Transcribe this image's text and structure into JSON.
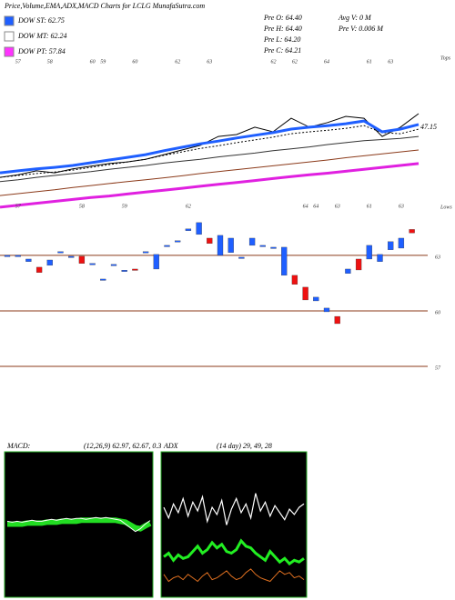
{
  "chart_data": [
    {
      "type": "line",
      "title": "Price,Volume,EMA,ADX,MACD Charts for LCLG MunafaSutra.com",
      "legend": [
        {
          "label": "DOW ST: 62.75",
          "color": "#1f5fff"
        },
        {
          "label": "DOW MT: 62.24",
          "color": "#ffffff"
        },
        {
          "label": "DOW PT: 57.84",
          "color": "#ff33ff"
        }
      ],
      "stats": [
        "Pre  O: 64.40",
        "Pre  H: 64.40",
        "Pre  L: 64.20",
        "Pre  C: 64.21"
      ],
      "volume_stats": [
        "Avg V: 0  M",
        "Pre  V: 0.006  M"
      ],
      "tops_label": "Tops",
      "lows_label": "Lows",
      "annotation": "47.15",
      "ylim": [
        30,
        70
      ],
      "series": [
        {
          "color": "#000000",
          "style": "thin",
          "values": [
            38.2,
            38.9,
            39.9,
            39.4,
            40.4,
            41.1,
            41.8,
            42.2,
            42.9,
            44.1,
            45.3,
            46.5,
            48.8,
            49.3,
            51.2,
            50.0,
            53.5,
            51.2,
            52.4,
            54.0,
            53.5,
            48.8,
            51.2,
            54.7
          ]
        },
        {
          "color": "#000000",
          "style": "dotted",
          "values": [
            38.2,
            38.7,
            39.2,
            39.6,
            40.1,
            40.8,
            41.5,
            42.2,
            42.9,
            43.9,
            44.8,
            45.7,
            46.4,
            47.2,
            47.9,
            48.6,
            49.5,
            50.0,
            50.4,
            50.9,
            51.6,
            49.8,
            49.5,
            50.7
          ]
        },
        {
          "color": "#1f5fff",
          "style": "thick",
          "values": [
            39.4,
            39.9,
            40.4,
            40.8,
            41.3,
            42.0,
            42.7,
            43.4,
            44.1,
            45.1,
            46.0,
            46.9,
            47.6,
            48.4,
            49.1,
            49.8,
            50.7,
            51.2,
            51.6,
            52.1,
            52.8,
            50.0,
            50.7,
            51.9
          ]
        },
        {
          "color": "#333333",
          "style": "thin",
          "values": [
            37.1,
            37.6,
            38.2,
            38.7,
            39.2,
            39.7,
            40.3,
            40.8,
            41.3,
            41.9,
            42.4,
            42.9,
            43.5,
            44.0,
            44.5,
            45.1,
            45.6,
            46.1,
            46.7,
            47.2,
            47.7,
            48.0,
            48.3,
            48.8
          ]
        },
        {
          "color": "#8b3a1a",
          "style": "thin",
          "values": [
            33.5,
            34.0,
            34.5,
            35.0,
            35.6,
            36.1,
            36.6,
            37.1,
            37.6,
            38.1,
            38.6,
            39.2,
            39.7,
            40.2,
            40.7,
            41.2,
            41.7,
            42.2,
            42.7,
            43.3,
            43.8,
            44.3,
            44.8,
            45.3
          ]
        },
        {
          "color": "#e020e0",
          "style": "thick",
          "values": [
            30.5,
            31.0,
            31.5,
            32.0,
            32.5,
            33.0,
            33.4,
            33.9,
            34.4,
            34.9,
            35.4,
            35.9,
            36.4,
            36.9,
            37.4,
            37.9,
            38.4,
            38.9,
            39.3,
            39.8,
            40.3,
            40.8,
            41.3,
            41.8
          ]
        }
      ]
    },
    {
      "type": "candlestick",
      "up_color": "#1f5fff",
      "down_color": "#ee1111",
      "grid_color": "#8b3a1a",
      "ylim": [
        54.2,
        65.5
      ],
      "yticks": [
        57,
        60,
        63
      ],
      "open": [
        63.0,
        63.0,
        62.66,
        62.36,
        62.46,
        63.2,
        62.95,
        62.95,
        62.56,
        61.72,
        62.51,
        62.16,
        62.26,
        63.2,
        62.26,
        63.54,
        63.79,
        64.33,
        64.13,
        63.93,
        63.0,
        63.15,
        62.9,
        63.54,
        63.54,
        63.44,
        61.92,
        61.92,
        61.28,
        60.54,
        59.95,
        59.7,
        62.02,
        62.8,
        62.8,
        62.66,
        63.3,
        63.39,
        64.4
      ],
      "close": [
        63.0,
        63.0,
        62.8,
        62.07,
        62.75,
        63.2,
        62.95,
        62.56,
        62.56,
        61.72,
        62.51,
        62.2,
        62.22,
        63.2,
        63.05,
        63.54,
        63.79,
        64.43,
        64.77,
        63.64,
        64.08,
        63.93,
        62.9,
        63.93,
        63.54,
        63.44,
        63.44,
        61.43,
        60.59,
        60.74,
        60.15,
        59.31,
        62.26,
        62.21,
        63.54,
        63.05,
        63.74,
        63.93,
        64.21
      ],
      "top_labels": [
        null,
        57,
        null,
        null,
        58,
        null,
        null,
        null,
        60,
        59,
        null,
        null,
        60,
        null,
        null,
        null,
        62,
        null,
        null,
        63,
        null,
        null,
        null,
        null,
        null,
        62,
        null,
        62,
        null,
        null,
        64,
        null,
        null,
        null,
        61,
        null,
        63,
        null,
        null
      ],
      "bottom_labels": [
        null,
        57,
        null,
        null,
        null,
        null,
        null,
        58,
        null,
        null,
        null,
        59,
        null,
        null,
        null,
        null,
        null,
        62,
        null,
        null,
        null,
        null,
        null,
        null,
        null,
        null,
        null,
        null,
        64,
        64,
        null,
        63,
        null,
        null,
        61,
        null,
        null,
        63,
        null
      ]
    },
    {
      "type": "line",
      "title": "MACD:",
      "subtitle": "(12,26,9) 62.97, 62.67, 0.3",
      "ylim": [
        55,
        70
      ],
      "series": [
        {
          "color": "#22dd22",
          "style": "band",
          "values": [
            62.6,
            62.6,
            62.6,
            62.6,
            62.7,
            62.7,
            62.7,
            62.7,
            62.8,
            62.8,
            62.8,
            62.9,
            62.9,
            62.9,
            62.9,
            63.0,
            63.0,
            63.0,
            63.0,
            63.0,
            63.0,
            63.0,
            63.0,
            62.9,
            62.8,
            62.5,
            62.2,
            62.1,
            62.4,
            62.67
          ]
        },
        {
          "color": "#ffffff",
          "style": "thin",
          "values": [
            62.9,
            62.8,
            62.9,
            62.8,
            62.9,
            63.0,
            62.9,
            62.9,
            63.0,
            63.1,
            63.0,
            63.1,
            63.2,
            63.1,
            63.2,
            63.2,
            63.1,
            63.2,
            63.3,
            63.2,
            63.3,
            63.2,
            63.1,
            63.0,
            62.6,
            62.2,
            61.8,
            62.1,
            62.6,
            62.97
          ]
        }
      ]
    },
    {
      "type": "line",
      "title": "ADX",
      "subtitle": "(14 day) 29, 49, 28",
      "ylim": [
        0,
        80
      ],
      "series": [
        {
          "color": "#ffffff",
          "style": "double",
          "values": [
            50,
            44,
            52,
            47,
            55,
            45,
            53,
            48,
            56,
            42,
            50,
            46,
            54,
            40,
            49,
            55,
            47,
            52,
            44,
            58,
            48,
            53,
            45,
            51,
            47,
            43,
            49,
            46,
            50,
            52
          ]
        },
        {
          "color": "#22ee22",
          "style": "thick",
          "values": [
            22,
            24,
            20,
            23,
            21,
            22,
            25,
            28,
            24,
            26,
            30,
            27,
            29,
            25,
            24,
            26,
            31,
            28,
            27,
            24,
            22,
            20,
            25,
            22,
            19,
            21,
            18,
            20,
            19,
            21
          ]
        },
        {
          "color": "#e07020",
          "style": "thin",
          "values": [
            12,
            8,
            10,
            11,
            9,
            12,
            10,
            8,
            11,
            13,
            9,
            10,
            12,
            14,
            11,
            9,
            10,
            13,
            15,
            12,
            10,
            9,
            8,
            11,
            14,
            12,
            13,
            10,
            11,
            9
          ]
        }
      ]
    }
  ]
}
